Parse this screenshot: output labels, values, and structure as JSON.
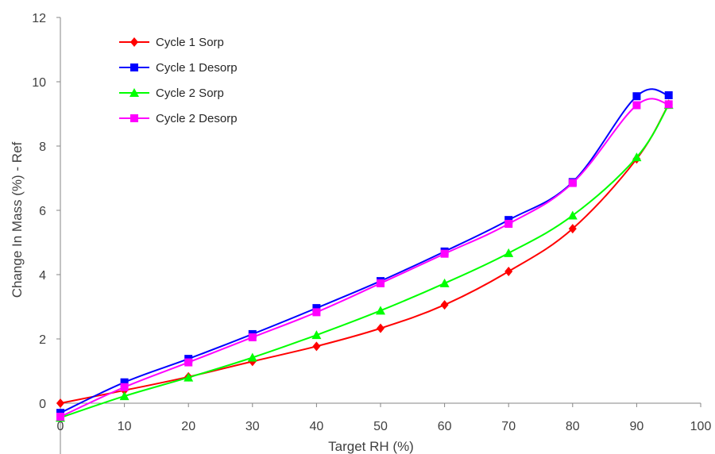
{
  "chart_data": {
    "type": "line",
    "title": "",
    "xlabel": "Target RH (%)",
    "ylabel": "Change In Mass (%) - Ref",
    "xlim": [
      0,
      100
    ],
    "ylim": [
      0,
      12
    ],
    "xticks": [
      "0",
      "10",
      "20",
      "30",
      "40",
      "50",
      "60",
      "70",
      "80",
      "90",
      "100"
    ],
    "yticks": [
      "0",
      "2",
      "4",
      "6",
      "8",
      "10",
      "12"
    ],
    "grid": false,
    "legend_position": "top-left",
    "series": [
      {
        "name": "Cycle 1 Sorp",
        "color": "#ff0000",
        "marker": "diamond",
        "x": [
          0,
          10,
          20,
          30,
          40,
          50,
          60,
          70,
          80,
          90,
          95
        ],
        "y": [
          0.0,
          0.4,
          0.82,
          1.3,
          1.77,
          2.33,
          3.06,
          4.1,
          5.43,
          7.6,
          9.3
        ]
      },
      {
        "name": "Cycle 1 Desorp",
        "color": "#0000ff",
        "marker": "square",
        "x": [
          0,
          10,
          20,
          30,
          40,
          50,
          60,
          70,
          80,
          90,
          95
        ],
        "y": [
          -0.3,
          0.65,
          1.38,
          2.15,
          2.96,
          3.8,
          4.72,
          5.7,
          6.88,
          9.55,
          9.58
        ]
      },
      {
        "name": "Cycle 2 Sorp",
        "color": "#00ff00",
        "marker": "triangle",
        "x": [
          0,
          10,
          20,
          30,
          40,
          50,
          60,
          70,
          80,
          90,
          95
        ],
        "y": [
          -0.45,
          0.22,
          0.8,
          1.42,
          2.12,
          2.88,
          3.73,
          4.67,
          5.84,
          7.65,
          9.28
        ]
      },
      {
        "name": "Cycle 2 Desorp",
        "color": "#ff00ff",
        "marker": "square",
        "x": [
          0,
          10,
          20,
          30,
          40,
          50,
          60,
          70,
          80,
          90,
          95
        ],
        "y": [
          -0.42,
          0.5,
          1.27,
          2.05,
          2.83,
          3.73,
          4.65,
          5.58,
          6.85,
          9.27,
          9.3
        ]
      }
    ]
  }
}
